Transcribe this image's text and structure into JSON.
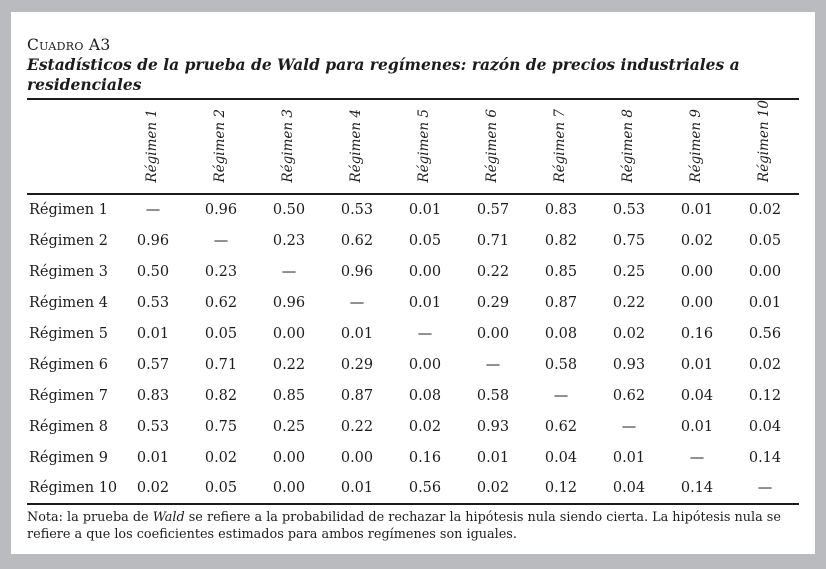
{
  "table": {
    "label": "Cuadro A3",
    "title": "Estadísticos de la prueba de Wald para regímenes: razón de precios industriales a residenciales",
    "columns": [
      "Régimen 1",
      "Régimen 2",
      "Régimen 3",
      "Régimen 4",
      "Régimen 5",
      "Régimen 6",
      "Régimen 7",
      "Régimen 8",
      "Régimen 9",
      "Régimen 10"
    ],
    "rows": [
      {
        "label": "Régimen 1",
        "values": [
          "—",
          "0.96",
          "0.50",
          "0.53",
          "0.01",
          "0.57",
          "0.83",
          "0.53",
          "0.01",
          "0.02"
        ]
      },
      {
        "label": "Régimen 2",
        "values": [
          "0.96",
          "—",
          "0.23",
          "0.62",
          "0.05",
          "0.71",
          "0.82",
          "0.75",
          "0.02",
          "0.05"
        ]
      },
      {
        "label": "Régimen 3",
        "values": [
          "0.50",
          "0.23",
          "—",
          "0.96",
          "0.00",
          "0.22",
          "0.85",
          "0.25",
          "0.00",
          "0.00"
        ]
      },
      {
        "label": "Régimen 4",
        "values": [
          "0.53",
          "0.62",
          "0.96",
          "—",
          "0.01",
          "0.29",
          "0.87",
          "0.22",
          "0.00",
          "0.01"
        ]
      },
      {
        "label": "Régimen 5",
        "values": [
          "0.01",
          "0.05",
          "0.00",
          "0.01",
          "—",
          "0.00",
          "0.08",
          "0.02",
          "0.16",
          "0.56"
        ]
      },
      {
        "label": "Régimen 6",
        "values": [
          "0.57",
          "0.71",
          "0.22",
          "0.29",
          "0.00",
          "—",
          "0.58",
          "0.93",
          "0.01",
          "0.02"
        ]
      },
      {
        "label": "Régimen 7",
        "values": [
          "0.83",
          "0.82",
          "0.85",
          "0.87",
          "0.08",
          "0.58",
          "—",
          "0.62",
          "0.04",
          "0.12"
        ]
      },
      {
        "label": "Régimen 8",
        "values": [
          "0.53",
          "0.75",
          "0.25",
          "0.22",
          "0.02",
          "0.93",
          "0.62",
          "—",
          "0.01",
          "0.04"
        ]
      },
      {
        "label": "Régimen 9",
        "values": [
          "0.01",
          "0.02",
          "0.00",
          "0.00",
          "0.16",
          "0.01",
          "0.04",
          "0.01",
          "—",
          "0.14"
        ]
      },
      {
        "label": "Régimen 10",
        "values": [
          "0.02",
          "0.05",
          "0.00",
          "0.01",
          "0.56",
          "0.02",
          "0.12",
          "0.04",
          "0.14",
          "—"
        ]
      }
    ],
    "note": {
      "prefix": "Nota: la prueba de ",
      "emphasis": "Wald",
      "suffix": " se refiere a la probabilidad de rechazar la hipótesis nula siendo cierta. La hipótesis nula se refiere a que los coeficientes estimados para ambos regímenes son iguales."
    }
  },
  "colors": {
    "page_background": "#b9bbbe",
    "panel_background": "#ffffff",
    "text": "#1c1c1c",
    "rule": "#1c1c1c"
  }
}
